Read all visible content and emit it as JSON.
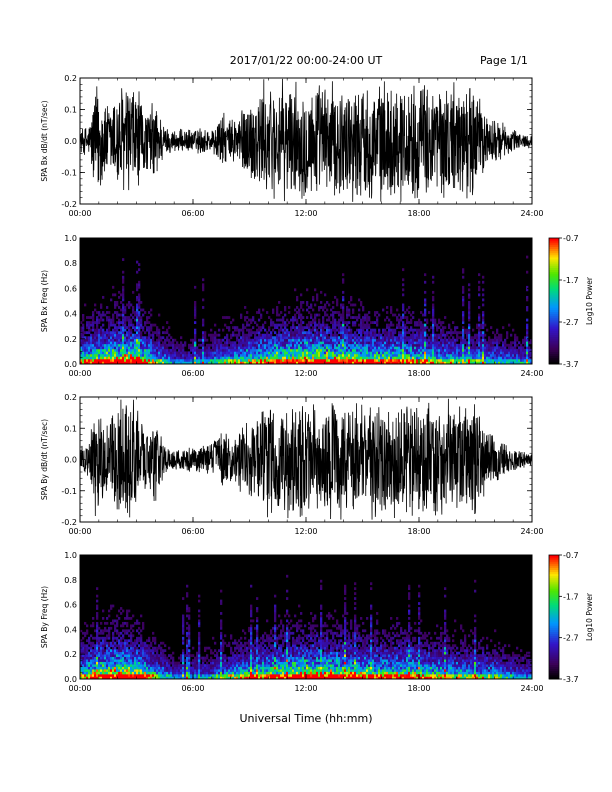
{
  "header": {
    "title": "2017/01/22  00:00-24:00 UT",
    "page": "Page 1/1"
  },
  "xaxis_title": "Universal Time (hh:mm)",
  "chart_data": [
    {
      "type": "line",
      "title": "",
      "ylabel": "SPA Bx dB/dt (nT/sec)",
      "xlabel": "",
      "x_ticks": [
        "00:00",
        "06:00",
        "12:00",
        "18:00",
        "24:00"
      ],
      "y_ticks": [
        "-0.2",
        "-0.1",
        "0.0",
        "0.1",
        "0.2"
      ],
      "ylim": [
        -0.2,
        0.2
      ],
      "xlim_hours": [
        0,
        24
      ],
      "envelope_hours": [
        0,
        0.5,
        0.8,
        1,
        1.5,
        2,
        2.5,
        3,
        3.5,
        4,
        4.5,
        5,
        5.5,
        6,
        6.5,
        7,
        7.5,
        8,
        8.5,
        9,
        9.5,
        10,
        10.5,
        11,
        11.5,
        12,
        12.5,
        13,
        13.5,
        14,
        14.5,
        15,
        15.5,
        16,
        16.5,
        17,
        17.5,
        18,
        18.5,
        19,
        19.5,
        20,
        20.5,
        21,
        21.5,
        22,
        22.5,
        23,
        23.5,
        24
      ],
      "envelope_amplitude": [
        0.04,
        0.06,
        0.2,
        0.2,
        0.12,
        0.2,
        0.2,
        0.2,
        0.1,
        0.15,
        0.05,
        0.04,
        0.04,
        0.04,
        0.05,
        0.04,
        0.1,
        0.07,
        0.12,
        0.14,
        0.2,
        0.2,
        0.2,
        0.2,
        0.2,
        0.2,
        0.2,
        0.2,
        0.2,
        0.2,
        0.2,
        0.2,
        0.2,
        0.2,
        0.2,
        0.2,
        0.2,
        0.2,
        0.2,
        0.2,
        0.2,
        0.2,
        0.2,
        0.2,
        0.1,
        0.08,
        0.06,
        0.04,
        0.03,
        0.02
      ]
    },
    {
      "type": "heatmap",
      "title": "",
      "ylabel": "SPA Bx Freq (Hz)",
      "xlabel": "",
      "x_ticks": [
        "00:00",
        "06:00",
        "12:00",
        "18:00",
        "24:00"
      ],
      "y_ticks": [
        "0.0",
        "0.2",
        "0.4",
        "0.6",
        "0.8",
        "1.0"
      ],
      "ylim": [
        0,
        1.0
      ],
      "colorbar": {
        "label": "Log10 Power",
        "ticks": [
          "-0.7",
          "-1.7",
          "-2.7",
          "-3.7"
        ],
        "range": [
          -3.7,
          -0.7
        ]
      },
      "activity_hours": [
        0,
        1,
        2,
        3,
        4,
        5,
        6,
        7,
        8,
        9,
        10,
        11,
        12,
        13,
        14,
        15,
        16,
        17,
        18,
        19,
        20,
        21,
        22,
        23,
        24
      ],
      "activity_level": [
        0.6,
        0.8,
        0.9,
        0.85,
        0.5,
        0.3,
        0.3,
        0.35,
        0.5,
        0.6,
        0.7,
        0.8,
        0.9,
        0.85,
        0.8,
        0.75,
        0.7,
        0.7,
        0.6,
        0.55,
        0.5,
        0.45,
        0.4,
        0.35,
        0.3
      ]
    },
    {
      "type": "line",
      "title": "",
      "ylabel": "SPA By dB/dt (nT/sec)",
      "xlabel": "",
      "x_ticks": [
        "00:00",
        "06:00",
        "12:00",
        "18:00",
        "24:00"
      ],
      "y_ticks": [
        "-0.2",
        "-0.1",
        "0.0",
        "0.1",
        "0.2"
      ],
      "ylim": [
        -0.2,
        0.2
      ],
      "xlim_hours": [
        0,
        24
      ],
      "envelope_hours": [
        0,
        0.5,
        0.8,
        1,
        1.5,
        2,
        2.5,
        3,
        3.5,
        4,
        4.5,
        5,
        5.5,
        6,
        6.5,
        7,
        7.5,
        8,
        8.5,
        9,
        9.5,
        10,
        10.5,
        11,
        11.5,
        12,
        12.5,
        13,
        13.5,
        14,
        14.5,
        15,
        15.5,
        16,
        16.5,
        17,
        17.5,
        18,
        18.5,
        19,
        19.5,
        20,
        20.5,
        21,
        21.5,
        22,
        22.5,
        23,
        23.5,
        24
      ],
      "envelope_amplitude": [
        0.04,
        0.06,
        0.2,
        0.2,
        0.12,
        0.2,
        0.2,
        0.2,
        0.1,
        0.15,
        0.05,
        0.04,
        0.04,
        0.04,
        0.05,
        0.05,
        0.1,
        0.08,
        0.12,
        0.14,
        0.2,
        0.2,
        0.2,
        0.2,
        0.2,
        0.2,
        0.2,
        0.2,
        0.2,
        0.2,
        0.2,
        0.2,
        0.2,
        0.2,
        0.2,
        0.2,
        0.2,
        0.2,
        0.2,
        0.2,
        0.2,
        0.2,
        0.2,
        0.2,
        0.12,
        0.08,
        0.06,
        0.04,
        0.03,
        0.02
      ]
    },
    {
      "type": "heatmap",
      "title": "",
      "ylabel": "SPA By Freq (Hz)",
      "xlabel": "",
      "x_ticks": [
        "00:00",
        "06:00",
        "12:00",
        "18:00",
        "24:00"
      ],
      "y_ticks": [
        "0.0",
        "0.2",
        "0.4",
        "0.6",
        "0.8",
        "1.0"
      ],
      "ylim": [
        0,
        1.0
      ],
      "colorbar": {
        "label": "Log10 Power",
        "ticks": [
          "-0.7",
          "-1.7",
          "-2.7",
          "-3.7"
        ],
        "range": [
          -3.7,
          -0.7
        ]
      },
      "activity_hours": [
        0,
        1,
        2,
        3,
        4,
        5,
        6,
        7,
        8,
        9,
        10,
        11,
        12,
        13,
        14,
        15,
        16,
        17,
        18,
        19,
        20,
        21,
        22,
        23,
        24
      ],
      "activity_level": [
        0.6,
        0.8,
        0.95,
        0.85,
        0.5,
        0.3,
        0.3,
        0.35,
        0.5,
        0.6,
        0.7,
        0.8,
        0.9,
        0.85,
        0.8,
        0.75,
        0.7,
        0.75,
        0.65,
        0.6,
        0.55,
        0.5,
        0.45,
        0.35,
        0.3
      ]
    }
  ]
}
